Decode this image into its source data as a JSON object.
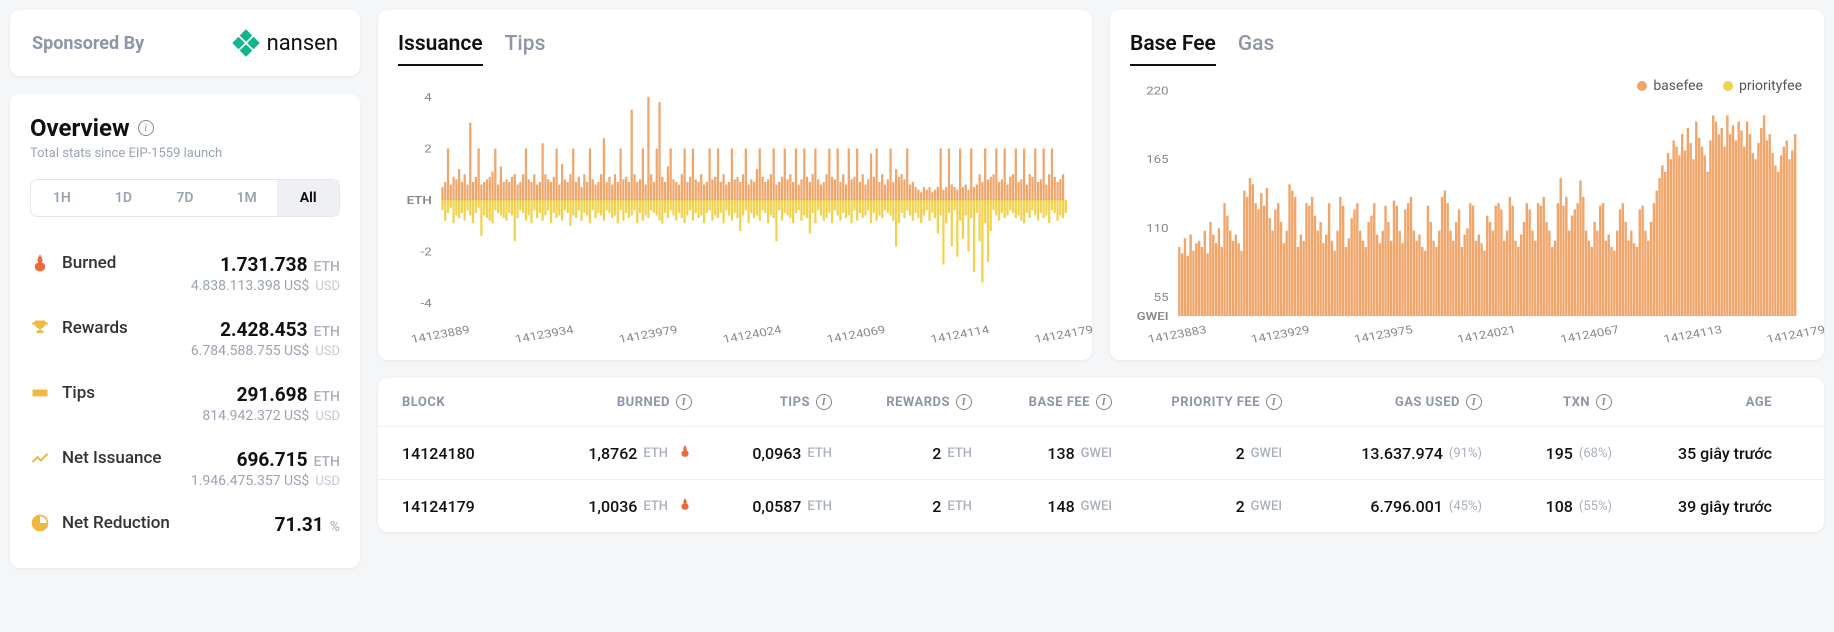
{
  "sponsor": {
    "label": "Sponsored By",
    "name": "nansen",
    "logo_color": "#0fb58f"
  },
  "overview": {
    "title": "Overview",
    "subtitle": "Total stats since EIP-1559 launch",
    "time_ranges": [
      "1H",
      "1D",
      "7D",
      "1M",
      "All"
    ],
    "time_active": 4,
    "stats": [
      {
        "icon": "fire",
        "icon_color": "#ef6a3b",
        "label": "Burned",
        "value": "1.731.738",
        "unit": "ETH",
        "sub_value": "4.838.113.398 US$",
        "sub_unit": "USD"
      },
      {
        "icon": "trophy",
        "icon_color": "#f0b83e",
        "label": "Rewards",
        "value": "2.428.453",
        "unit": "ETH",
        "sub_value": "6.784.588.755 US$",
        "sub_unit": "USD"
      },
      {
        "icon": "ticket",
        "icon_color": "#f0b83e",
        "label": "Tips",
        "value": "291.698",
        "unit": "ETH",
        "sub_value": "814.942.372 US$",
        "sub_unit": "USD"
      },
      {
        "icon": "trend",
        "icon_color": "#f0b83e",
        "label": "Net Issuance",
        "value": "696.715",
        "unit": "ETH",
        "sub_value": "1.946.475.357 US$",
        "sub_unit": "USD"
      },
      {
        "icon": "pie",
        "icon_color": "#f0b83e",
        "label": "Net Reduction",
        "value": "71.31",
        "unit": "%",
        "sub_value": "",
        "sub_unit": ""
      }
    ]
  },
  "chart_left": {
    "tabs": [
      "Issuance",
      "Tips"
    ],
    "active": 0,
    "y_unit": "ETH",
    "y_ticks": [
      -4,
      -2,
      2,
      4
    ],
    "ylim": [
      -4.5,
      4.5
    ],
    "x_ticks": [
      "14123889",
      "14123934",
      "14123979",
      "14124024",
      "14124069",
      "14124114",
      "14124179"
    ],
    "pos_color": "#f0a56b",
    "neg_color": "#f2d24a",
    "axis_color": "#c8cdd6",
    "pos_values": [
      0.5,
      0.7,
      2,
      0.6,
      0.9,
      0.8,
      1.2,
      0.7,
      1,
      0.6,
      3,
      0.7,
      0.9,
      2,
      0.6,
      0.7,
      0.8,
      0.9,
      1.1,
      2,
      0.6,
      1.3,
      0.7,
      0.8,
      0.7,
      0.9,
      1,
      0.6,
      0.7,
      1,
      2,
      0.8,
      0.7,
      1,
      0.6,
      0.7,
      2.2,
      1,
      0.8,
      0.7,
      0.9,
      2,
      0.6,
      1.4,
      0.8,
      0.7,
      1,
      2,
      0.7,
      0.9,
      0.5,
      1,
      0.7,
      2,
      0.8,
      0.6,
      0.7,
      1,
      2.4,
      0.7,
      0.9,
      0.6,
      1,
      0.7,
      2,
      0.8,
      0.9,
      0.7,
      3.5,
      1,
      0.7,
      0.8,
      2,
      0.6,
      4,
      1,
      0.7,
      2,
      3.8,
      0.9,
      0.7,
      1.3,
      2,
      0.8,
      0.7,
      0.6,
      1,
      2,
      0.7,
      0.9,
      2,
      0.8,
      0.7,
      1,
      0.6,
      0.7,
      2,
      0.8,
      0.9,
      2,
      0.7,
      1,
      0.6,
      0.7,
      2,
      0.8,
      0.9,
      0.7,
      1,
      2,
      0.6,
      0.8,
      0.7,
      1.2,
      2,
      0.9,
      0.7,
      0.8,
      1,
      2,
      0.6,
      0.7,
      0.9,
      2,
      0.8,
      1,
      0.7,
      2,
      0.6,
      0.8,
      2,
      0.9,
      0.7,
      1,
      2,
      0.8,
      0.6,
      0.7,
      1,
      2,
      0.9,
      0.8,
      2,
      0.7,
      1,
      0.6,
      2,
      0.8,
      0.9,
      2,
      0.7,
      1,
      0.6,
      0.8,
      1.8,
      0.9,
      2,
      0.7,
      1,
      0.6,
      0.8,
      2,
      0.7,
      1.2,
      0.9,
      1,
      0.8,
      2,
      0.6,
      0.7,
      0.5,
      0.4,
      0.3,
      0.5,
      0.4,
      0.5,
      0.3,
      0.4,
      0.5,
      2,
      0.4,
      0.5,
      2,
      0.6,
      0.5,
      0.4,
      2,
      0.5,
      0.6,
      0.4,
      2,
      0.5,
      0.6,
      1,
      0.7,
      2,
      0.8,
      0.9,
      1,
      2,
      0.7,
      0.8,
      2,
      0.6,
      0.9,
      1,
      2,
      0.7,
      0.8,
      2,
      0.6,
      1,
      0.9,
      2,
      0.7,
      0.8,
      2,
      0.6,
      1,
      2,
      0.9,
      0.7,
      0.8,
      1
    ],
    "neg_values": [
      0.4,
      0.8,
      0.5,
      0.3,
      0.9,
      0.6,
      0.7,
      0.5,
      0.8,
      0.4,
      0.6,
      0.9,
      0.5,
      0.3,
      1.4,
      0.6,
      0.7,
      0.8,
      0.9,
      0.4,
      0.5,
      0.6,
      0.7,
      0.8,
      0.5,
      0.6,
      1.6,
      0.7,
      0.4,
      0.5,
      0.8,
      0.6,
      0.9,
      0.4,
      0.7,
      0.5,
      0.8,
      0.6,
      0.4,
      0.9,
      0.5,
      0.7,
      0.6,
      0.8,
      0.4,
      0.5,
      1.0,
      0.6,
      0.7,
      0.4,
      0.8,
      0.5,
      0.6,
      0.9,
      0.4,
      0.7,
      0.5,
      0.6,
      0.8,
      0.4,
      0.5,
      0.7,
      0.6,
      0.9,
      0.4,
      0.8,
      0.5,
      0.7,
      0.6,
      0.4,
      0.9,
      0.5,
      0.8,
      0.6,
      0.7,
      0.4,
      0.5,
      0.6,
      0.8,
      0.9,
      0.5,
      0.7,
      0.4,
      0.6,
      0.8,
      0.5,
      0.7,
      0.9,
      0.6,
      0.4,
      0.8,
      0.5,
      0.7,
      0.6,
      0.9,
      0.5,
      0.4,
      0.8,
      0.6,
      0.7,
      0.5,
      0.9,
      0.4,
      0.6,
      0.8,
      0.5,
      0.7,
      1.2,
      0.6,
      0.4,
      0.9,
      0.5,
      0.7,
      0.6,
      0.8,
      0.4,
      0.5,
      0.9,
      0.6,
      0.7,
      1.6,
      0.4,
      0.8,
      0.5,
      0.6,
      0.7,
      0.9,
      0.5,
      0.4,
      0.8,
      0.6,
      0.7,
      1.3,
      0.5,
      0.9,
      0.4,
      0.6,
      0.8,
      0.7,
      0.5,
      0.9,
      0.4,
      0.6,
      0.8,
      0.5,
      0.7,
      0.6,
      0.9,
      0.4,
      0.8,
      0.5,
      0.7,
      0.6,
      0.4,
      0.9,
      0.5,
      0.8,
      0.6,
      0.7,
      0.4,
      0.5,
      0.6,
      0.8,
      1.8,
      0.9,
      0.5,
      0.7,
      0.4,
      0.6,
      0.8,
      0.5,
      0.7,
      0.9,
      0.6,
      0.4,
      0.8,
      0.5,
      0.7,
      1.3,
      0.6,
      2.5,
      0.9,
      0.5,
      1.8,
      0.4,
      2.2,
      0.8,
      1.5,
      0.6,
      2.0,
      0.7,
      2.8,
      0.5,
      1.6,
      3.2,
      0.9,
      2.4,
      1.2,
      0.4,
      0.6,
      0.8,
      0.5,
      0.7,
      0.6,
      0.4,
      0.5,
      0.7,
      0.6,
      0.8,
      0.9,
      0.5,
      0.7,
      0.4,
      0.6,
      0.8,
      0.5,
      0.7,
      0.6,
      0.9,
      0.4,
      0.5,
      0.8,
      0.6,
      0.7,
      0.5
    ]
  },
  "chart_right": {
    "tabs": [
      "Base Fee",
      "Gas"
    ],
    "active": 0,
    "y_unit": "GWEI",
    "y_ticks": [
      55,
      110,
      165,
      220
    ],
    "ylim": [
      40,
      225
    ],
    "x_ticks": [
      "14123883",
      "14123929",
      "14123975",
      "14124021",
      "14124067",
      "14124113",
      "14124179"
    ],
    "bar_color": "#f0a56b",
    "legend": [
      {
        "label": "basefee",
        "color": "#f0a56b"
      },
      {
        "label": "priorityfee",
        "color": "#f2d24a"
      }
    ],
    "values": [
      95,
      90,
      102,
      88,
      105,
      92,
      98,
      100,
      95,
      108,
      90,
      115,
      105,
      98,
      110,
      95,
      130,
      120,
      108,
      100,
      105,
      98,
      92,
      140,
      135,
      150,
      145,
      130,
      125,
      138,
      128,
      142,
      118,
      108,
      125,
      130,
      115,
      98,
      108,
      145,
      140,
      135,
      95,
      105,
      100,
      130,
      128,
      135,
      120,
      108,
      115,
      98,
      105,
      130,
      100,
      92,
      108,
      135,
      128,
      95,
      102,
      118,
      125,
      130,
      108,
      100,
      95,
      115,
      120,
      130,
      105,
      98,
      108,
      128,
      115,
      100,
      132,
      128,
      108,
      98,
      125,
      130,
      135,
      108,
      100,
      105,
      95,
      92,
      128,
      115,
      100,
      95,
      108,
      135,
      140,
      130,
      108,
      100,
      115,
      125,
      95,
      105,
      110,
      130,
      128,
      100,
      105,
      98,
      92,
      120,
      115,
      108,
      128,
      130,
      125,
      100,
      108,
      135,
      128,
      100,
      95,
      105,
      115,
      130,
      125,
      108,
      100,
      130,
      128,
      135,
      115,
      108,
      95,
      100,
      130,
      150,
      128,
      135,
      108,
      120,
      125,
      130,
      148,
      135,
      108,
      100,
      95,
      115,
      108,
      128,
      130,
      100,
      105,
      95,
      92,
      108,
      125,
      130,
      115,
      100,
      108,
      98,
      95,
      125,
      128,
      108,
      100,
      115,
      130,
      140,
      150,
      160,
      155,
      170,
      165,
      180,
      175,
      168,
      185,
      172,
      190,
      178,
      165,
      195,
      182,
      175,
      168,
      155,
      180,
      200,
      195,
      185,
      190,
      175,
      200,
      185,
      192,
      180,
      195,
      188,
      175,
      195,
      185,
      170,
      165,
      178,
      190,
      200,
      180,
      185,
      170,
      160,
      155,
      168,
      175,
      180,
      165,
      172,
      185
    ]
  },
  "table": {
    "columns": [
      "BLOCK",
      "BURNED",
      "TIPS",
      "REWARDS",
      "BASE FEE",
      "PRIORITY FEE",
      "GAS USED",
      "TXN",
      "AGE"
    ],
    "rows": [
      {
        "block": "14124180",
        "burned": "1,8762",
        "burned_unit": "ETH",
        "tips": "0,0963",
        "tips_unit": "ETH",
        "rewards": "2",
        "rewards_unit": "ETH",
        "basefee": "138",
        "basefee_unit": "GWEI",
        "priorityfee": "2",
        "priorityfee_unit": "GWEI",
        "gasused": "13.637.974",
        "gasused_pct": "(91%)",
        "txn": "195",
        "txn_pct": "(68%)",
        "age": "35 giây trước"
      },
      {
        "block": "14124179",
        "burned": "1,0036",
        "burned_unit": "ETH",
        "tips": "0,0587",
        "tips_unit": "ETH",
        "rewards": "2",
        "rewards_unit": "ETH",
        "basefee": "148",
        "basefee_unit": "GWEI",
        "priorityfee": "2",
        "priorityfee_unit": "GWEI",
        "gasused": "6.796.001",
        "gasused_pct": "(45%)",
        "txn": "108",
        "txn_pct": "(55%)",
        "age": "39 giây trước"
      }
    ]
  }
}
